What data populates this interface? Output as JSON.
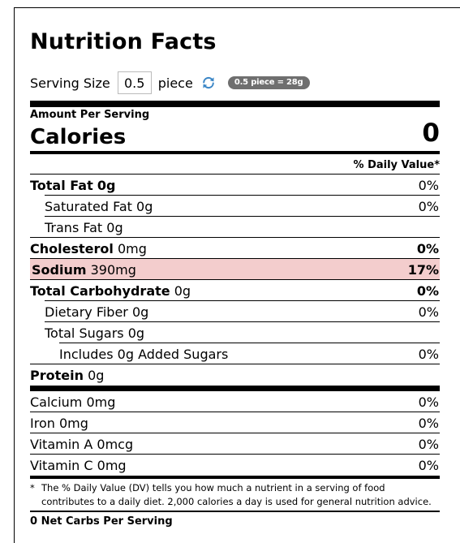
{
  "label": {
    "title": "Nutrition Facts",
    "serving": {
      "label": "Serving Size",
      "value": "0.5",
      "unit": "piece",
      "refresh_icon": "refresh-icon",
      "badge": "0.5 piece = 28g"
    },
    "amount_per_serving": "Amount Per Serving",
    "calories_label": "Calories",
    "calories_value": "0",
    "daily_value_header": "% Daily Value*",
    "nutrients": [
      {
        "name": "Total Fat",
        "amount": "0g",
        "dv": "0%"
      },
      {
        "name": "Saturated Fat",
        "amount": "0g",
        "dv": "0%"
      },
      {
        "name": "Trans Fat",
        "amount": "0g",
        "dv": ""
      },
      {
        "name": "Cholesterol",
        "amount": "0mg",
        "dv": "0%"
      },
      {
        "name": "Sodium",
        "amount": "390mg",
        "dv": "17%",
        "highlight_color": "#f3cdcd"
      },
      {
        "name": "Total Carbohydrate",
        "amount": "0g",
        "dv": "0%"
      },
      {
        "name": "Dietary Fiber",
        "amount": "0g",
        "dv": "0%"
      },
      {
        "name": "Total Sugars",
        "amount": "0g",
        "dv": ""
      },
      {
        "name": "Includes 0g Added Sugars",
        "amount": "",
        "dv": "0%"
      },
      {
        "name": "Protein",
        "amount": "0g",
        "dv": ""
      }
    ],
    "vitamins": [
      {
        "name": "Calcium 0mg",
        "dv": "0%"
      },
      {
        "name": "Iron 0mg",
        "dv": "0%"
      },
      {
        "name": "Vitamin A 0mcg",
        "dv": "0%"
      },
      {
        "name": "Vitamin C 0mg",
        "dv": "0%"
      }
    ],
    "footnote_star": "*",
    "footnote": "The % Daily Value (DV) tells you how much a nutrient in a serving of food contributes to a daily diet. 2,000 calories a day is used for general nutrition advice.",
    "net_carbs": "0 Net Carbs Per Serving"
  }
}
